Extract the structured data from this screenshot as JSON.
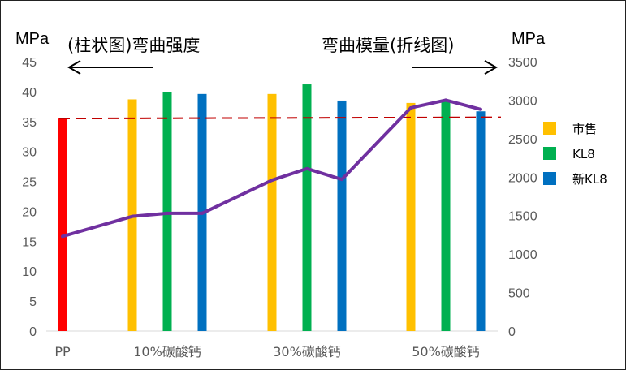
{
  "chart_data": {
    "type": "bar",
    "left_axis": {
      "unit": "MPa",
      "ylim": [
        0,
        45
      ],
      "ticks": [
        0,
        5,
        10,
        15,
        20,
        25,
        30,
        35,
        40,
        45
      ]
    },
    "right_axis": {
      "unit": "MPa",
      "ylim": [
        0,
        3500
      ],
      "ticks": [
        0,
        500,
        1000,
        1500,
        2000,
        2500,
        3000,
        3500
      ]
    },
    "categories": [
      "PP",
      "10%碳酸钙",
      "30%碳酸钙",
      "50%碳酸钙"
    ],
    "bars": [
      {
        "group": "PP",
        "series": "PP",
        "value": 35.5,
        "color": "#ff0000"
      },
      {
        "group": "10%碳酸钙",
        "series": "市售",
        "value": 38.7,
        "color": "#ffc000"
      },
      {
        "group": "10%碳酸钙",
        "series": "KL8",
        "value": 39.9,
        "color": "#00b050"
      },
      {
        "group": "10%碳酸钙",
        "series": "新KL8",
        "value": 39.6,
        "color": "#0070c0"
      },
      {
        "group": "30%碳酸钙",
        "series": "市售",
        "value": 39.6,
        "color": "#ffc000"
      },
      {
        "group": "30%碳酸钙",
        "series": "KL8",
        "value": 41.2,
        "color": "#00b050"
      },
      {
        "group": "30%碳酸钙",
        "series": "新KL8",
        "value": 38.5,
        "color": "#0070c0"
      },
      {
        "group": "50%碳酸钙",
        "series": "市售",
        "value": 38.1,
        "color": "#ffc000"
      },
      {
        "group": "50%碳酸钙",
        "series": "KL8",
        "value": 38.6,
        "color": "#00b050"
      },
      {
        "group": "50%碳酸钙",
        "series": "新KL8",
        "value": 36.7,
        "color": "#0070c0"
      }
    ],
    "line": {
      "color": "#7030a0",
      "values": [
        1230,
        1490,
        1530,
        1530,
        1960,
        2110,
        1970,
        2900,
        3000,
        2880
      ]
    },
    "reference_line": {
      "value": 35.5,
      "color": "#c00000",
      "style": "dashed"
    },
    "legend": {
      "placement": "right",
      "items": [
        {
          "label": "市售",
          "color": "#ffc000"
        },
        {
          "label": "KL8",
          "color": "#00b050"
        },
        {
          "label": "新KL8",
          "color": "#0070c0"
        }
      ]
    },
    "annotations": {
      "left_text": "(柱状图)弯曲强度",
      "right_text": "弯曲模量(折线图)"
    },
    "grid": false
  }
}
